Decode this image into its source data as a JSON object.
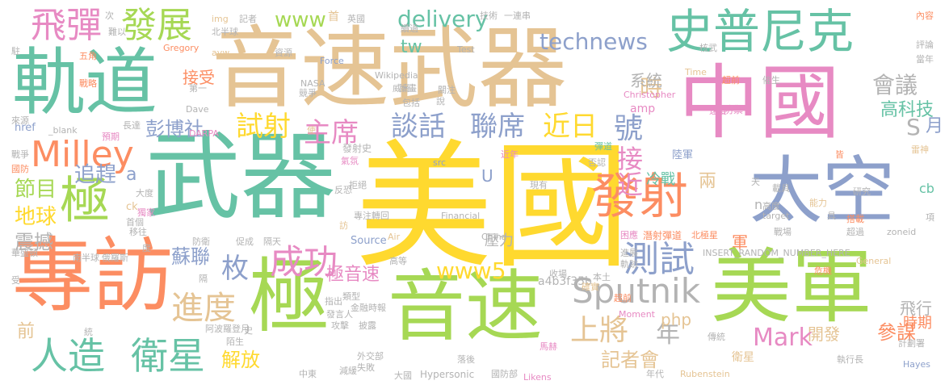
{
  "words": [
    {
      "text": "美國",
      "color": "#ffd92f"
    },
    {
      "text": "音速武器",
      "color": "#e5c494"
    },
    {
      "text": "武器",
      "color": "#66c2a5"
    },
    {
      "text": "軌道",
      "color": "#66c2a5"
    },
    {
      "text": "專訪",
      "color": "#fc8d62"
    },
    {
      "text": "極",
      "color": "#a6d854"
    },
    {
      "text": "音速",
      "color": "#a6d854"
    },
    {
      "text": "美軍",
      "color": "#a6d854"
    },
    {
      "text": "中國",
      "color": "#e78ac3"
    },
    {
      "text": "史普尼克",
      "color": "#66c2a5"
    },
    {
      "text": "太空",
      "color": "#8da0cb"
    },
    {
      "text": "發射",
      "color": "#fc8d62"
    },
    {
      "text": "極",
      "color": "#a6d854"
    },
    {
      "text": "飛彈",
      "color": "#e78ac3"
    },
    {
      "text": "發展",
      "color": "#a6d854"
    },
    {
      "text": "Milley",
      "color": "#fc8d62"
    },
    {
      "text": "Sputnik",
      "color": "#b3b3b3"
    },
    {
      "text": "衛星",
      "color": "#66c2a5"
    },
    {
      "text": "人造",
      "color": "#66c2a5"
    },
    {
      "text": "進度",
      "color": "#e5c494"
    },
    {
      "text": "成功",
      "color": "#e78ac3"
    },
    {
      "text": "測試",
      "color": "#8da0cb"
    },
    {
      "text": "試射",
      "color": "#ffd92f"
    },
    {
      "text": "主席",
      "color": "#e78ac3"
    },
    {
      "text": "談話",
      "color": "#8da0cb"
    },
    {
      "text": "聯席",
      "color": "#8da0cb"
    },
    {
      "text": "近日",
      "color": "#ffd92f"
    },
    {
      "text": "號",
      "color": "#8da0cb"
    },
    {
      "text": "接近",
      "color": "#e78ac3"
    },
    {
      "text": "上將",
      "color": "#e5c494"
    },
    {
      "text": "會議",
      "color": "#b3b3b3"
    },
    {
      "text": "高科技",
      "color": "#66c2a5"
    },
    {
      "text": "彭博社",
      "color": "#8da0cb"
    },
    {
      "text": "時",
      "color": "#e5c494"
    },
    {
      "text": "technews",
      "color": "#8da0cb"
    },
    {
      "text": "delivery",
      "color": "#66c2a5"
    },
    {
      "text": "www",
      "color": "#a6d854"
    },
    {
      "text": "www5",
      "color": "#ffd92f"
    },
    {
      "text": "tw",
      "color": "#66c2a5"
    },
    {
      "text": "節目",
      "color": "#a6d854"
    },
    {
      "text": "追趕",
      "color": "#8da0cb"
    },
    {
      "text": "地球",
      "color": "#ffd92f"
    },
    {
      "text": "震撼",
      "color": "#b3b3b3"
    },
    {
      "text": "蘇聯",
      "color": "#8da0cb"
    },
    {
      "text": "前",
      "color": "#e5c494"
    },
    {
      "text": "解放",
      "color": "#ffd92f"
    },
    {
      "text": "記者會",
      "color": "#e5c494"
    },
    {
      "text": "開發",
      "color": "#e5c494"
    },
    {
      "text": "參謀",
      "color": "#fc8d62"
    },
    {
      "text": "Mark",
      "color": "#e78ac3"
    },
    {
      "text": "年",
      "color": "#b3b3b3"
    },
    {
      "text": "php",
      "color": "#e5c494"
    },
    {
      "text": "枚",
      "color": "#8da0cb"
    },
    {
      "text": "極音速",
      "color": "#e78ac3"
    },
    {
      "text": "S",
      "color": "#b3b3b3"
    },
    {
      "text": "月",
      "color": "#8da0cb"
    },
    {
      "text": "系統",
      "color": "#b3b3b3"
    },
    {
      "text": "冷戰",
      "color": "#66c2a5"
    },
    {
      "text": "兩",
      "color": "#e5c494"
    },
    {
      "text": "軍",
      "color": "#fc8d62"
    },
    {
      "text": "飛行",
      "color": "#b3b3b3"
    },
    {
      "text": "時期",
      "color": "#fc8d62"
    },
    {
      "text": "接受",
      "color": "#fc8d62"
    },
    {
      "text": "a",
      "color": "#8da0cb"
    },
    {
      "text": "a4b3f35b",
      "color": "#b3b3b3"
    },
    {
      "text": "cb",
      "color": "#66c2a5"
    },
    {
      "text": "壓力",
      "color": "#b3b3b3"
    },
    {
      "text": "首",
      "color": "#e5c494"
    },
    {
      "text": "英國",
      "color": "#b3b3b3"
    },
    {
      "text": "記者",
      "color": "#b3b3b3"
    },
    {
      "text": "img",
      "color": "#e5c494"
    },
    {
      "text": "技術",
      "color": "#b3b3b3"
    },
    {
      "text": "一連串",
      "color": "#b3b3b3"
    },
    {
      "text": "內容",
      "color": "#fc8d62"
    },
    {
      "text": "評論",
      "color": "#b3b3b3"
    },
    {
      "text": "當年",
      "color": "#b3b3b3"
    },
    {
      "text": "核武",
      "color": "#b3b3b3"
    },
    {
      "text": "超前",
      "color": "#fc8d62"
    },
    {
      "text": "催生",
      "color": "#b3b3b3"
    },
    {
      "text": "雷神",
      "color": "#e5c494"
    },
    {
      "text": "研究",
      "color": "#b3b3b3"
    },
    {
      "text": "搭載",
      "color": "#fc8d62"
    },
    {
      "text": "超過",
      "color": "#b3b3b3"
    },
    {
      "text": "zoneid",
      "color": "#b3b3b3"
    },
    {
      "text": "General",
      "color": "#e5c494"
    },
    {
      "text": "危機",
      "color": "#fc8d62"
    },
    {
      "text": "計劃署",
      "color": "#b3b3b3"
    },
    {
      "text": "Hayes",
      "color": "#8da0cb"
    },
    {
      "text": "執行長",
      "color": "#b3b3b3"
    },
    {
      "text": "衛星",
      "color": "#e5c494"
    },
    {
      "text": "傳統",
      "color": "#b3b3b3"
    },
    {
      "text": "潛射彈道",
      "color": "#fc8d62"
    },
    {
      "text": "北極星",
      "color": "#fc8d62"
    },
    {
      "text": "困應",
      "color": "#e78ac3"
    },
    {
      "text": "INSERT_RANDOM_NUMBER_HERE",
      "color": "#b3b3b3"
    },
    {
      "text": "戰場",
      "color": "#b3b3b3"
    },
    {
      "text": "能力",
      "color": "#e5c494"
    },
    {
      "text": "高度",
      "color": "#b3b3b3"
    },
    {
      "text": "載具",
      "color": "#b3b3b3"
    },
    {
      "text": "陸軍",
      "color": "#8da0cb"
    },
    {
      "text": "速度",
      "color": "#e78ac3"
    },
    {
      "text": "防禦",
      "color": "#e78ac3"
    },
    {
      "text": "Christopher",
      "color": "#e78ac3"
    },
    {
      "text": "amp",
      "color": "#e78ac3"
    },
    {
      "text": "Time",
      "color": "#e5c494"
    },
    {
      "text": "超前",
      "color": "#fc8d62"
    },
    {
      "text": "Moment",
      "color": "#e78ac3"
    },
    {
      "text": "Likens",
      "color": "#e78ac3"
    },
    {
      "text": "Rubenstein",
      "color": "#e5c494"
    },
    {
      "text": "年代",
      "color": "#b3b3b3"
    },
    {
      "text": "國防部",
      "color": "#b3b3b3"
    },
    {
      "text": "Hypersonic",
      "color": "#b3b3b3"
    },
    {
      "text": "大國",
      "color": "#b3b3b3"
    },
    {
      "text": "中東",
      "color": "#b3b3b3"
    },
    {
      "text": "減緩",
      "color": "#b3b3b3"
    },
    {
      "text": "外交部",
      "color": "#b3b3b3"
    },
    {
      "text": "失敗",
      "color": "#b3b3b3"
    },
    {
      "text": "落後",
      "color": "#b3b3b3"
    },
    {
      "text": "馬赫",
      "color": "#e78ac3"
    },
    {
      "text": "本土",
      "color": "#b3b3b3"
    },
    {
      "text": "收場",
      "color": "#b3b3b3"
    },
    {
      "text": "確實",
      "color": "#e5c494"
    },
    {
      "text": "Financial",
      "color": "#b3b3b3"
    },
    {
      "text": "China",
      "color": "#b3b3b3"
    },
    {
      "text": "現有",
      "color": "#b3b3b3"
    },
    {
      "text": "U",
      "color": "#8da0cb"
    },
    {
      "text": "Source",
      "color": "#8da0cb"
    },
    {
      "text": "Air",
      "color": "#e5c494"
    },
    {
      "text": "高等",
      "color": "#b3b3b3"
    },
    {
      "text": "金融時報",
      "color": "#b3b3b3"
    },
    {
      "text": "發言人",
      "color": "#b3b3b3"
    },
    {
      "text": "類型",
      "color": "#b3b3b3"
    },
    {
      "text": "攻擊",
      "color": "#b3b3b3"
    },
    {
      "text": "披露",
      "color": "#b3b3b3"
    },
    {
      "text": "指出",
      "color": "#b3b3b3"
    },
    {
      "text": "專注轉回",
      "color": "#b3b3b3"
    },
    {
      "text": "拒絕",
      "color": "#b3b3b3"
    },
    {
      "text": "反恐",
      "color": "#b3b3b3"
    },
    {
      "text": "發射史",
      "color": "#b3b3b3"
    },
    {
      "text": "氣氛",
      "color": "#e78ac3"
    },
    {
      "text": "src",
      "color": "#8da0cb"
    },
    {
      "text": "近年",
      "color": "#e78ac3"
    },
    {
      "text": "彈道",
      "color": "#66c2a5"
    },
    {
      "text": "否認",
      "color": "#b3b3b3"
    },
    {
      "text": "Wikipedia",
      "color": "#b3b3b3"
    },
    {
      "text": "威脅",
      "color": "#b3b3b3"
    },
    {
      "text": "關注",
      "color": "#b3b3b3"
    },
    {
      "text": "計畫",
      "color": "#b3b3b3"
    },
    {
      "text": "包括",
      "color": "#b3b3b3"
    },
    {
      "text": "說",
      "color": "#b3b3b3"
    },
    {
      "text": "Test",
      "color": "#b3b3b3"
    },
    {
      "text": "續過",
      "color": "#b3b3b3"
    },
    {
      "text": "Force",
      "color": "#8da0cb"
    },
    {
      "text": "資源",
      "color": "#b3b3b3"
    },
    {
      "text": "NASA",
      "color": "#b3b3b3"
    },
    {
      "text": "競爭",
      "color": "#b3b3b3"
    },
    {
      "text": "第一",
      "color": "#b3b3b3"
    },
    {
      "text": "Dave",
      "color": "#b3b3b3"
    },
    {
      "text": "DARPA",
      "color": "#e78ac3"
    },
    {
      "text": "長達",
      "color": "#b3b3b3"
    },
    {
      "text": "_blank",
      "color": "#b3b3b3"
    },
    {
      "text": "href",
      "color": "#8da0cb"
    },
    {
      "text": "預期",
      "color": "#e78ac3"
    },
    {
      "text": "使",
      "color": "#e5c494"
    },
    {
      "text": "Gregory",
      "color": "#fc8d62"
    },
    {
      "text": "avw",
      "color": "#e5c494"
    },
    {
      "text": "北半球",
      "color": "#b3b3b3"
    },
    {
      "text": "次",
      "color": "#b3b3b3"
    },
    {
      "text": "難以",
      "color": "#b3b3b3"
    },
    {
      "text": "駐",
      "color": "#b3b3b3"
    },
    {
      "text": "五角",
      "color": "#fc8d62"
    },
    {
      "text": "戰略",
      "color": "#fc8d62"
    },
    {
      "text": "來源",
      "color": "#b3b3b3"
    },
    {
      "text": "戰爭",
      "color": "#b3b3b3"
    },
    {
      "text": "國防",
      "color": "#fc8d62"
    },
    {
      "text": "華盛頓",
      "color": "#b3b3b3"
    },
    {
      "text": "受",
      "color": "#b3b3b3"
    },
    {
      "text": "南半球",
      "color": "#b3b3b3"
    },
    {
      "text": "俄羅斯",
      "color": "#b3b3b3"
    },
    {
      "text": "移往",
      "color": "#b3b3b3"
    },
    {
      "text": "首個",
      "color": "#b3b3b3"
    },
    {
      "text": "ck",
      "color": "#e5c494"
    },
    {
      "text": "大度",
      "color": "#b3b3b3"
    },
    {
      "text": "獨家",
      "color": "#e78ac3"
    },
    {
      "text": "度",
      "color": "#b3b3b3"
    },
    {
      "text": "防衛",
      "color": "#b3b3b3"
    },
    {
      "text": "促成",
      "color": "#b3b3b3"
    },
    {
      "text": "隔天",
      "color": "#b3b3b3"
    },
    {
      "text": "訪",
      "color": "#e5c494"
    },
    {
      "text": "隔",
      "color": "#b3b3b3"
    },
    {
      "text": "阿波羅登月",
      "color": "#b3b3b3"
    },
    {
      "text": "陌生",
      "color": "#b3b3b3"
    },
    {
      "text": "史",
      "color": "#b3b3b3"
    },
    {
      "text": "統",
      "color": "#b3b3b3"
    },
    {
      "text": "天",
      "color": "#b3b3b3"
    },
    {
      "text": "target",
      "color": "#b3b3b3"
    },
    {
      "text": "具",
      "color": "#b3b3b3"
    },
    {
      "text": "皆",
      "color": "#fc8d62"
    },
    {
      "text": "項",
      "color": "#b3b3b3"
    },
    {
      "text": "進展",
      "color": "#b3b3b3"
    },
    {
      "text": "軌跡",
      "color": "#b3b3b3"
    },
    {
      "text": "n",
      "color": "#b3b3b3"
    }
  ]
}
